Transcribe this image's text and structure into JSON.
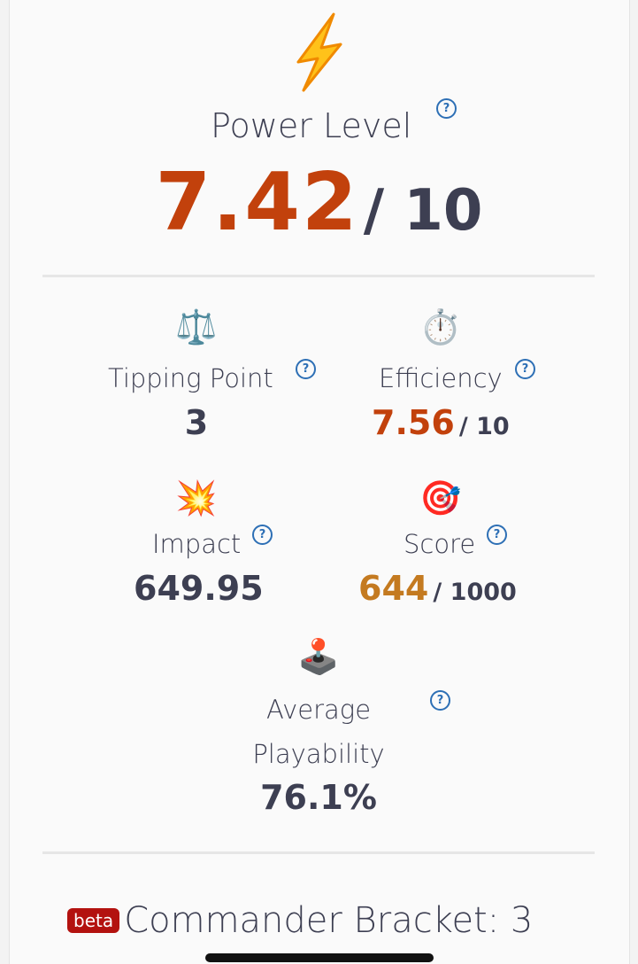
{
  "colors": {
    "power": "#c2410c",
    "score": "#c47a20",
    "text": "#3d3f52",
    "help": "#2d6fb5",
    "beta": "#b3120f"
  },
  "power": {
    "icon": "lightning-icon",
    "label": "Power Level",
    "value": "7.42",
    "max": "/ 10"
  },
  "stats": [
    {
      "icon": "scales-icon",
      "glyph": "⚖️",
      "label": "Tipping Point",
      "value": "3",
      "max": ""
    },
    {
      "icon": "stopwatch-icon",
      "glyph": "⏱️",
      "label": "Efficiency",
      "value": "7.56",
      "max": "/ 10"
    },
    {
      "icon": "collision-icon",
      "glyph": "💥",
      "label": "Impact",
      "value": "649.95",
      "max": ""
    },
    {
      "icon": "target-icon",
      "glyph": "🎯",
      "label": "Score",
      "value": "644",
      "max": "/ 1000"
    }
  ],
  "playability": {
    "icon": "joystick-icon",
    "glyph": "🕹️",
    "label_line1": "Average",
    "label_line2": "Playability",
    "value": "76.1%"
  },
  "bracket": {
    "badge": "beta",
    "label": "Commander Bracket: 3"
  }
}
